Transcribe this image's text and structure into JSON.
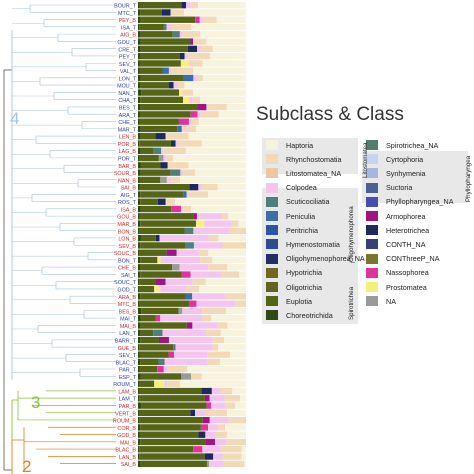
{
  "chart_data": {
    "type": "bar",
    "title": "Subclass & Class",
    "stacked": true,
    "orientation": "horizontal",
    "samples": [
      {
        "label": "BOUR_T",
        "site": "blue"
      },
      {
        "label": "MTC_T",
        "site": "blue"
      },
      {
        "label": "PEY_B",
        "site": "red"
      },
      {
        "label": "ISA_T",
        "site": "blue"
      },
      {
        "label": "AIG_B",
        "site": "red"
      },
      {
        "label": "GOU_T",
        "site": "blue"
      },
      {
        "label": "CRE_T",
        "site": "blue"
      },
      {
        "label": "PEY_T",
        "site": "blue"
      },
      {
        "label": "SEV_T",
        "site": "blue"
      },
      {
        "label": "VAL_T",
        "site": "blue"
      },
      {
        "label": "LON_T",
        "site": "blue"
      },
      {
        "label": "MOU_T",
        "site": "blue"
      },
      {
        "label": "NAN_T",
        "site": "blue"
      },
      {
        "label": "CHA_T",
        "site": "blue"
      },
      {
        "label": "BES_T",
        "site": "blue"
      },
      {
        "label": "ARA_T",
        "site": "blue"
      },
      {
        "label": "CHE_T",
        "site": "blue"
      },
      {
        "label": "MAR_T",
        "site": "blue"
      },
      {
        "label": "LEN_B",
        "site": "red"
      },
      {
        "label": "POR_B",
        "site": "red"
      },
      {
        "label": "LAG_B",
        "site": "red"
      },
      {
        "label": "POR_T",
        "site": "blue"
      },
      {
        "label": "BAR_B",
        "site": "red"
      },
      {
        "label": "SOUR_B",
        "site": "red"
      },
      {
        "label": "NAN_B",
        "site": "red"
      },
      {
        "label": "SAI_B",
        "site": "red"
      },
      {
        "label": "AIG_T",
        "site": "blue"
      },
      {
        "label": "ROS_T",
        "site": "blue"
      },
      {
        "label": "ISA_B",
        "site": "red"
      },
      {
        "label": "GOU_B",
        "site": "red"
      },
      {
        "label": "MAR_B",
        "site": "red"
      },
      {
        "label": "BON_B",
        "site": "red"
      },
      {
        "label": "LON_B",
        "site": "red"
      },
      {
        "label": "SEV_B",
        "site": "red"
      },
      {
        "label": "SOUC_B",
        "site": "red"
      },
      {
        "label": "BON_T",
        "site": "blue"
      },
      {
        "label": "CHE_B",
        "site": "red"
      },
      {
        "label": "SAI_T",
        "site": "blue"
      },
      {
        "label": "SOUC_T",
        "site": "blue"
      },
      {
        "label": "GOD_T",
        "site": "blue"
      },
      {
        "label": "ARA_B",
        "site": "red"
      },
      {
        "label": "MTC_B",
        "site": "red"
      },
      {
        "label": "BES_B",
        "site": "red"
      },
      {
        "label": "MAI_T",
        "site": "blue"
      },
      {
        "label": "MAI_B",
        "site": "red"
      },
      {
        "label": "LAN_T",
        "site": "blue"
      },
      {
        "label": "BARR_T",
        "site": "blue"
      },
      {
        "label": "GUE_B",
        "site": "red"
      },
      {
        "label": "SEV_T",
        "site": "blue"
      },
      {
        "label": "BLAC_T",
        "site": "blue"
      },
      {
        "label": "PAR_T",
        "site": "blue"
      },
      {
        "label": "ESP_T",
        "site": "blue"
      },
      {
        "label": "ROUM_T",
        "site": "blue"
      },
      {
        "label": "LAM_B",
        "site": "red"
      },
      {
        "label": "LAM_T",
        "site": "blue"
      },
      {
        "label": "PAR_B",
        "site": "red"
      },
      {
        "label": "VERT_B",
        "site": "red"
      },
      {
        "label": "ROUM_B",
        "site": "red"
      },
      {
        "label": "COR_B",
        "site": "red"
      },
      {
        "label": "GOD_B",
        "site": "red"
      },
      {
        "label": "MAI_B",
        "site": "red"
      },
      {
        "label": "BLAC_B",
        "site": "red"
      },
      {
        "label": "LAN_B",
        "site": "red"
      },
      {
        "label": "SAI_B",
        "site": "red"
      }
    ],
    "categories_order": [
      "Haptoria",
      "Rhynchostomatia",
      "Litostomatea_NA",
      "Colpodea",
      "Scuticociliatia",
      "Peniculia",
      "Peritrichia",
      "Hymenostomatia",
      "Oligohymenophorea_NA",
      "Hypotrichia",
      "Oligotrichia",
      "Euplotia",
      "Choreotrichida",
      "Spirotrichea_NA",
      "Cyrtophoria",
      "Synhymenia",
      "Suctoria",
      "Phyllopharyngea_NA",
      "Armophorea",
      "Heterotrichea",
      "CONTH_NA",
      "CONThreeP_NA",
      "Nassophorea",
      "Prostomatea",
      "NA"
    ],
    "xlim": [
      0,
      1
    ],
    "legend": {
      "position": "right",
      "left_column": [
        {
          "name": "Haptoria",
          "color": "#f7f3dc"
        },
        {
          "name": "Rhynchostomatia",
          "color": "#f2d9b8"
        },
        {
          "name": "Litostomatea_NA",
          "color": "#e9c9a2"
        },
        {
          "name": "Colpodea",
          "color": "#f4c6ef"
        },
        {
          "name": "Scuticociliatia",
          "color": "#4f7f7a"
        },
        {
          "name": "Peniculia",
          "color": "#3c6ea8"
        },
        {
          "name": "Peritrichia",
          "color": "#2b55a6"
        },
        {
          "name": "Hymenostomatia",
          "color": "#2c4d96"
        },
        {
          "name": "Oligohymenophorea_NA",
          "color": "#1f2f66"
        },
        {
          "name": "Hypotrichia",
          "color": "#6f6a1a"
        },
        {
          "name": "Oligotrichia",
          "color": "#5f6520"
        },
        {
          "name": "Euplotia",
          "color": "#556417"
        },
        {
          "name": "Choreotrichida",
          "color": "#2f4a12"
        }
      ],
      "right_column": [
        {
          "name": "Spirotrichea_NA",
          "color": "#547c6a"
        },
        {
          "name": "Cyrtophoria",
          "color": "#c6d5ef"
        },
        {
          "name": "Synhymenia",
          "color": "#a8b6dd"
        },
        {
          "name": "Suctoria",
          "color": "#4d5f93"
        },
        {
          "name": "Phyllopharyngea_NA",
          "color": "#4a4cb5"
        },
        {
          "name": "Armophorea",
          "color": "#a01484"
        },
        {
          "name": "Heterotrichea",
          "color": "#1f2a5c"
        },
        {
          "name": "CONTH_NA",
          "color": "#36417a"
        },
        {
          "name": "CONThreeP_NA",
          "color": "#78762a"
        },
        {
          "name": "Nassophorea",
          "color": "#e0349c"
        },
        {
          "name": "Prostomatea",
          "color": "#f4f17a"
        },
        {
          "name": "NA",
          "color": "#9a9a9a"
        }
      ],
      "groups": [
        {
          "name": "Litostomatea",
          "covers": [
            "Haptoria",
            "Litostomatea_NA"
          ]
        },
        {
          "name": "Oligohymenophorea",
          "covers": [
            "Scuticociliatia",
            "Oligohymenophorea_NA"
          ]
        },
        {
          "name": "Spirotrichea",
          "covers": [
            "Hypotrichia",
            "Choreotrichida"
          ]
        },
        {
          "name": "Phyllopharyngea",
          "covers": [
            "Cyrtophoria",
            "Phyllopharyngea_NA"
          ]
        }
      ]
    },
    "cluster_labels": [
      "4",
      "3",
      "2"
    ],
    "cluster_colors": {
      "4": "#a9c4dc",
      "3": "#8bbf3f",
      "2": "#e07b22"
    }
  }
}
